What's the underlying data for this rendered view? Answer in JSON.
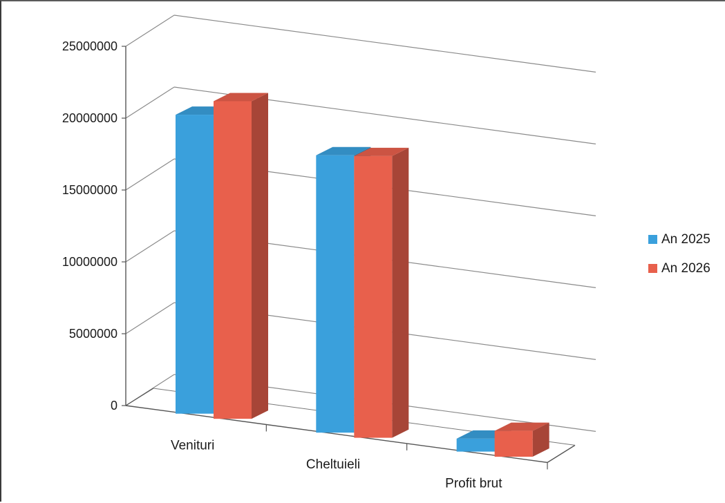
{
  "chart_data": {
    "type": "bar",
    "title": "",
    "xlabel": "",
    "ylabel": "",
    "categories": [
      "Venituri",
      "Cheltuieli",
      "Profit brut"
    ],
    "series": [
      {
        "name": "An 2025",
        "values": [
          20800000,
          19300000,
          900000
        ],
        "color": "#3aa0dc"
      },
      {
        "name": "An 2026",
        "values": [
          22100000,
          19600000,
          1800000
        ],
        "color": "#e8604c"
      }
    ],
    "y_ticks": [
      "0",
      "5000000",
      "10000000",
      "15000000",
      "20000000",
      "25000000"
    ],
    "ylim": [
      0,
      25000000
    ],
    "grid": true,
    "legend_position": "right",
    "three_d": true
  }
}
